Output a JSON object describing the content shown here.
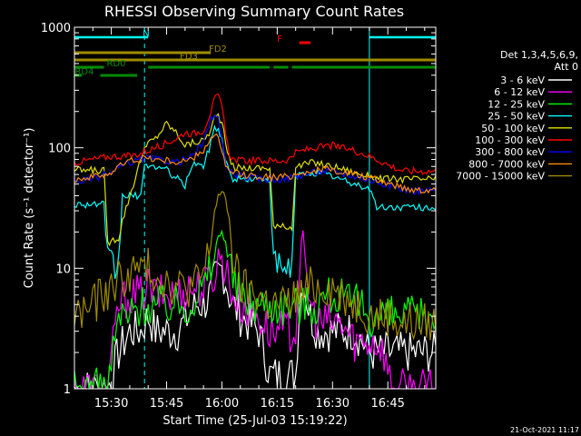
{
  "chart_data": {
    "type": "line",
    "title": "RHESSI Observing Summary Count Rates",
    "xlabel": "Start Time (25-Jul-03 15:19:22)",
    "ylabel": "Count Rate (s⁻¹ detector⁻¹)",
    "yscale": "log",
    "ylim": [
      1,
      1000
    ],
    "xlim_min": [
      0,
      98
    ],
    "x_ticks": [
      {
        "min": 10,
        "label": "15:30"
      },
      {
        "min": 25,
        "label": "15:45"
      },
      {
        "min": 40,
        "label": "16:00"
      },
      {
        "min": 55,
        "label": "16:15"
      },
      {
        "min": 70,
        "label": "16:30"
      },
      {
        "min": 85,
        "label": "16:45"
      }
    ],
    "y_ticks": [
      {
        "v": 1,
        "label": "1"
      },
      {
        "v": 10,
        "label": "10"
      },
      {
        "v": 100,
        "label": "100"
      },
      {
        "v": 1000,
        "label": "1000"
      }
    ],
    "legend_header": [
      "Det 1,3,4,5,6,9,",
      "Att 0"
    ],
    "series": [
      {
        "name": "3 - 6 keV",
        "color": "#ffffff",
        "x": [
          0,
          8,
          9,
          12,
          15,
          18,
          20,
          22,
          25,
          28,
          31,
          33,
          35,
          37,
          38,
          39,
          40,
          41,
          42,
          43,
          45,
          50,
          53,
          54,
          55,
          56,
          57,
          58,
          59,
          60,
          61,
          62,
          64,
          66,
          68,
          70,
          72,
          74,
          76,
          78,
          80,
          82,
          84,
          86,
          88,
          90,
          92,
          95,
          98
        ],
        "y": [
          1,
          1,
          1,
          2,
          3,
          3,
          4,
          3,
          3,
          3,
          4,
          5,
          5,
          6,
          8,
          9,
          10,
          8,
          6,
          5,
          4,
          3,
          1.3,
          1.3,
          1.3,
          1.3,
          1.3,
          1.3,
          1.3,
          1.3,
          5,
          8,
          4,
          3,
          3,
          3,
          3,
          3,
          3,
          2.5,
          2,
          2,
          2,
          2,
          2,
          2,
          2,
          2,
          2
        ]
      },
      {
        "name": "6 - 12 keV",
        "color": "#ff00ff",
        "x": [
          0,
          8,
          9,
          12,
          15,
          18,
          20,
          22,
          25,
          28,
          31,
          33,
          35,
          37,
          38,
          39,
          40,
          41,
          42,
          43,
          45,
          50,
          53,
          54,
          56,
          58,
          60,
          61,
          62,
          64,
          66,
          68,
          70,
          72,
          74,
          76,
          78,
          80,
          82,
          84,
          86
        ],
        "y": [
          1,
          1,
          1,
          5,
          6,
          6,
          7,
          6,
          6,
          6,
          7,
          7,
          7,
          8,
          9,
          12,
          12,
          10,
          8,
          6,
          5,
          4,
          3,
          3,
          3,
          3,
          3,
          10,
          14,
          5,
          3.5,
          3.5,
          3.5,
          3.5,
          3,
          2.5,
          2.5,
          2.5,
          2.5,
          2,
          1
        ]
      },
      {
        "name": "12 - 25 keV",
        "color": "#00ff00",
        "x": [
          0,
          8,
          9,
          12,
          15,
          18,
          20,
          22,
          25,
          28,
          31,
          33,
          35,
          37,
          38,
          39,
          40,
          41,
          42,
          43,
          45,
          50,
          53,
          54,
          56,
          58,
          60,
          62,
          64,
          66,
          68,
          70,
          72,
          74,
          76,
          78,
          80
        ],
        "y": [
          1,
          1,
          1,
          4,
          4,
          5,
          5,
          5,
          5,
          5,
          5,
          6,
          7,
          10,
          14,
          18,
          20,
          17,
          12,
          8,
          6,
          5,
          5,
          5,
          5,
          5,
          5,
          5,
          5,
          5,
          6,
          6,
          6,
          5,
          5,
          5,
          4
        ]
      },
      {
        "name": "25 - 50 keV",
        "color": "#00ffff",
        "x": [
          0,
          7,
          8,
          9,
          12,
          13,
          18,
          19,
          20,
          22,
          25,
          28,
          30,
          31,
          32,
          35,
          37,
          38,
          39,
          40,
          41,
          42,
          43,
          45,
          50,
          53,
          54,
          56,
          58,
          59,
          60,
          62,
          64,
          66,
          68,
          70,
          72,
          74,
          76,
          78,
          80,
          82,
          84,
          86,
          88,
          90,
          92,
          95,
          98
        ],
        "y": [
          34,
          34,
          34,
          10,
          10,
          40,
          40,
          68,
          72,
          70,
          65,
          55,
          48,
          60,
          75,
          70,
          110,
          150,
          140,
          120,
          80,
          62,
          55,
          55,
          55,
          55,
          9.5,
          9.5,
          9.5,
          9.5,
          58,
          60,
          62,
          62,
          60,
          58,
          55,
          52,
          50,
          48,
          46,
          32,
          32,
          32,
          32,
          32,
          32,
          32,
          32
        ]
      },
      {
        "name": "50 - 100 keV",
        "color": "#e0e000",
        "x": [
          0,
          7,
          8,
          9,
          10,
          12,
          13,
          18,
          19,
          20,
          22,
          25,
          28,
          30,
          32,
          35,
          37,
          38,
          39,
          40,
          41,
          42,
          43,
          45,
          50,
          53,
          54,
          56,
          58,
          59,
          60,
          62,
          64,
          66,
          68,
          70,
          72,
          74,
          76,
          78,
          80,
          82,
          84,
          86,
          88,
          90,
          92,
          95,
          98
        ],
        "y": [
          65,
          65,
          65,
          16,
          17,
          18,
          25,
          80,
          95,
          110,
          120,
          160,
          130,
          105,
          110,
          115,
          140,
          180,
          185,
          160,
          110,
          80,
          70,
          68,
          68,
          68,
          22,
          22,
          22,
          22,
          70,
          72,
          75,
          75,
          72,
          70,
          68,
          65,
          62,
          60,
          58,
          56,
          55,
          55,
          55,
          55,
          55,
          55,
          55
        ]
      },
      {
        "name": "100 - 300 keV",
        "color": "#ff0000",
        "x": [
          0,
          5,
          10,
          15,
          18,
          20,
          22,
          25,
          28,
          30,
          32,
          35,
          37,
          38,
          39,
          40,
          41,
          42,
          43,
          45,
          50,
          53,
          56,
          58,
          60,
          62,
          64,
          66,
          68,
          70,
          72,
          74,
          76,
          78,
          80,
          82,
          84,
          86,
          88,
          90,
          92,
          95,
          98
        ],
        "y": [
          75,
          80,
          85,
          85,
          90,
          95,
          100,
          110,
          120,
          135,
          130,
          140,
          200,
          250,
          270,
          220,
          130,
          90,
          80,
          78,
          78,
          78,
          78,
          80,
          90,
          95,
          98,
          100,
          102,
          104,
          100,
          98,
          95,
          90,
          85,
          80,
          75,
          70,
          66,
          64,
          64,
          64,
          64
        ]
      },
      {
        "name": "300 - 800 keV",
        "color": "#0000ff",
        "x": [
          0,
          5,
          10,
          12,
          15,
          18,
          20,
          22,
          25,
          28,
          30,
          32,
          35,
          37,
          38,
          39,
          40,
          41,
          42,
          43,
          45,
          50,
          53,
          56,
          58,
          60,
          62,
          64,
          66,
          68,
          70,
          72,
          74,
          76,
          78,
          80,
          82,
          84,
          86,
          88,
          90,
          92,
          95,
          98
        ],
        "y": [
          52,
          55,
          62,
          68,
          75,
          80,
          82,
          80,
          78,
          76,
          80,
          85,
          110,
          170,
          195,
          175,
          110,
          75,
          65,
          62,
          58,
          55,
          55,
          55,
          56,
          58,
          60,
          62,
          63,
          64,
          63,
          62,
          60,
          58,
          56,
          54,
          52,
          50,
          48,
          46,
          45,
          44,
          44,
          44
        ]
      },
      {
        "name": "800 - 7000 keV",
        "color": "#ff8c00",
        "x": [
          0,
          5,
          10,
          12,
          15,
          18,
          20,
          22,
          25,
          28,
          30,
          32,
          35,
          37,
          38,
          39,
          40,
          41,
          42,
          43,
          45,
          50,
          53,
          56,
          58,
          60,
          62,
          64,
          66,
          68,
          70,
          72,
          74,
          76,
          78,
          80,
          82,
          84,
          86,
          88,
          90,
          92,
          95,
          98
        ],
        "y": [
          55,
          57,
          62,
          70,
          78,
          82,
          82,
          80,
          78,
          76,
          78,
          80,
          95,
          120,
          130,
          120,
          90,
          70,
          64,
          62,
          60,
          58,
          57,
          57,
          58,
          60,
          62,
          64,
          65,
          66,
          65,
          64,
          62,
          60,
          58,
          56,
          54,
          52,
          50,
          48,
          46,
          45,
          45,
          45
        ]
      },
      {
        "name": "7000 - 15000 keV",
        "color": "#a08c00",
        "x": [
          0,
          5,
          8,
          10,
          12,
          15,
          18,
          20,
          22,
          25,
          28,
          30,
          32,
          35,
          37,
          38,
          39,
          40,
          41,
          42,
          43,
          45,
          50,
          53,
          56,
          58,
          60,
          62,
          64,
          66,
          68,
          70,
          72,
          74,
          76,
          78,
          80,
          82,
          84,
          86,
          88,
          90,
          92,
          95,
          98
        ],
        "y": [
          4,
          5,
          6,
          7,
          8,
          9,
          10,
          10,
          9,
          8,
          7,
          7,
          7,
          9,
          16,
          30,
          40,
          42,
          38,
          25,
          12,
          7,
          6,
          5,
          5,
          5,
          6,
          6,
          7,
          7,
          7,
          7,
          6,
          6,
          5,
          5,
          4,
          4,
          4,
          4,
          3.5,
          3.5,
          3.5,
          3.5,
          3.5
        ]
      }
    ],
    "flags": [
      {
        "label": "N",
        "color": "#00ffff",
        "segments": [
          [
            0,
            20
          ],
          [
            80,
            98
          ]
        ]
      },
      {
        "label": "FD2",
        "color": "#a08c00",
        "segments": [
          [
            0,
            37
          ]
        ]
      },
      {
        "label": "F",
        "color": "#ff0000",
        "segments": [
          [
            61,
            64
          ]
        ]
      },
      {
        "label": "FD3",
        "color": "#a08c00",
        "segments": [
          [
            0,
            98
          ]
        ]
      },
      {
        "label": "RD0",
        "color": "#008c00",
        "segments": [
          [
            0,
            8
          ],
          [
            20,
            53
          ],
          [
            54,
            58
          ],
          [
            59,
            98
          ]
        ]
      },
      {
        "label": "RD4",
        "color": "#008c00",
        "segments": [
          [
            0,
            2
          ],
          [
            7,
            17
          ]
        ]
      }
    ],
    "vertical_markers_min": [
      0,
      19,
      80,
      98
    ]
  },
  "footer": {
    "timestamp": "21-Oct-2021 11:17"
  }
}
